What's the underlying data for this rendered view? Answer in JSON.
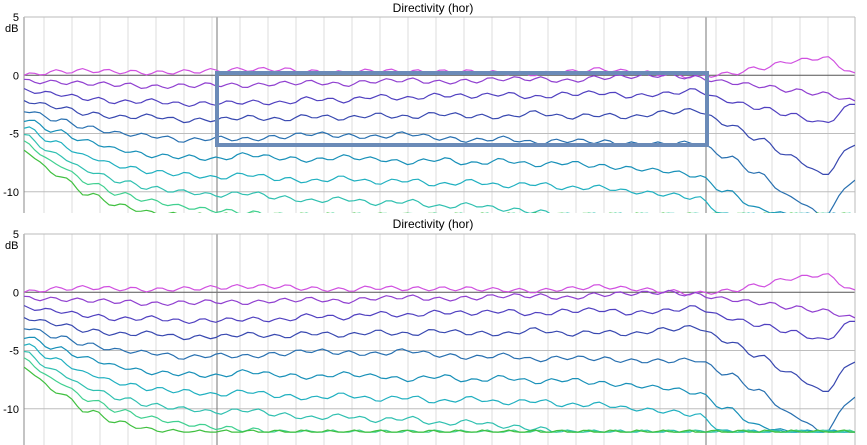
{
  "chart_data": [
    {
      "type": "line",
      "title": "Directivity (hor)",
      "ylabel": "dB",
      "ylim": [
        -12,
        5
      ],
      "yticks": [
        "5",
        "0",
        "-5",
        "-10"
      ],
      "highlight_box": true,
      "series": [
        {
          "color": "#d050e0",
          "values": [
            0.0,
            0.3,
            0.4,
            0.3,
            0.2,
            0.3,
            0.4,
            0.5,
            0.5,
            0.3,
            0.2,
            0.4,
            0.3,
            0.3,
            0.3,
            0.2,
            0.1,
            0.3,
            0.5,
            0.3,
            0.1,
            -0.1,
            0.1,
            0.6,
            1.2,
            1.5,
            0.2
          ]
        },
        {
          "color": "#9040d0",
          "values": [
            -0.5,
            -0.6,
            -0.7,
            -0.8,
            -1.0,
            -0.9,
            -0.8,
            -0.9,
            -0.7,
            -0.6,
            -0.8,
            -0.5,
            -0.4,
            -0.6,
            -0.5,
            -0.3,
            -0.3,
            -0.5,
            -0.2,
            -0.1,
            0.0,
            -0.2,
            -0.6,
            -0.9,
            -1.3,
            -1.6,
            -2.2
          ]
        },
        {
          "color": "#5040c0",
          "values": [
            -1.3,
            -1.6,
            -2.0,
            -2.3,
            -2.2,
            -2.5,
            -2.4,
            -2.3,
            -2.4,
            -2.0,
            -2.2,
            -1.8,
            -2.0,
            -1.7,
            -1.8,
            -1.6,
            -1.9,
            -1.6,
            -1.5,
            -1.8,
            -1.6,
            -1.3,
            -2.2,
            -2.8,
            -3.4,
            -4.1,
            -2.5
          ]
        },
        {
          "color": "#3848b0",
          "values": [
            -2.2,
            -2.7,
            -3.3,
            -3.6,
            -3.5,
            -3.9,
            -3.8,
            -3.6,
            -3.8,
            -3.5,
            -3.7,
            -3.4,
            -3.6,
            -3.3,
            -3.5,
            -3.6,
            -3.2,
            -3.6,
            -3.4,
            -3.6,
            -3.2,
            -3.0,
            -4.2,
            -5.5,
            -7.0,
            -8.5,
            -6.0
          ]
        },
        {
          "color": "#2870b0",
          "values": [
            -3.0,
            -3.8,
            -4.5,
            -5.0,
            -5.2,
            -5.6,
            -5.4,
            -5.5,
            -5.3,
            -5.0,
            -5.2,
            -5.3,
            -5.0,
            -5.4,
            -5.6,
            -5.4,
            -5.8,
            -5.6,
            -5.7,
            -5.9,
            -5.9,
            -5.8,
            -7.0,
            -8.5,
            -10.5,
            -12.0,
            -9.0
          ]
        },
        {
          "color": "#1890b8",
          "values": [
            -3.8,
            -4.8,
            -5.7,
            -6.4,
            -6.9,
            -7.0,
            -7.2,
            -6.8,
            -7.1,
            -7.3,
            -7.0,
            -7.2,
            -7.5,
            -7.2,
            -7.6,
            -7.3,
            -7.7,
            -7.5,
            -7.8,
            -8.0,
            -8.2,
            -8.6,
            -10.0,
            -11.5,
            -12.0,
            -12.0,
            -12.0
          ]
        },
        {
          "color": "#20b0c0",
          "values": [
            -4.5,
            -5.8,
            -7.0,
            -7.8,
            -8.3,
            -8.5,
            -8.8,
            -8.5,
            -8.9,
            -9.1,
            -8.8,
            -9.2,
            -9.0,
            -9.4,
            -9.1,
            -9.5,
            -9.3,
            -9.7,
            -9.6,
            -10.0,
            -10.2,
            -10.5,
            -12.0,
            -12.0,
            -12.0,
            -12.0,
            -12.0
          ]
        },
        {
          "color": "#30c0b0",
          "values": [
            -5.2,
            -6.8,
            -8.2,
            -9.1,
            -9.7,
            -10.0,
            -10.3,
            -10.1,
            -10.5,
            -10.8,
            -10.6,
            -11.0,
            -10.8,
            -11.3,
            -11.1,
            -11.5,
            -11.7,
            -12.0,
            -12.0,
            -12.0,
            -12.0,
            -12.0,
            -12.0,
            -12.0,
            -12.0,
            -12.0,
            -12.0
          ]
        },
        {
          "color": "#40d090",
          "values": [
            -5.8,
            -7.6,
            -9.2,
            -10.2,
            -10.8,
            -11.3,
            -11.6,
            -11.8,
            -12.0,
            -12.0,
            -12.0,
            -12.0,
            -12.0,
            -12.0,
            -12.0,
            -12.0,
            -12.0,
            -12.0,
            -12.0,
            -12.0,
            -12.0,
            -12.0,
            -12.0,
            -12.0,
            -12.0,
            -12.0,
            -12.0
          ]
        },
        {
          "color": "#40c040",
          "values": [
            -6.5,
            -8.5,
            -10.2,
            -11.2,
            -11.8,
            -12.0,
            -12.0,
            -12.0,
            -12.0,
            -12.0,
            -12.0,
            -12.0,
            -12.0,
            -12.0,
            -12.0,
            -12.0,
            -12.0,
            -12.0,
            -12.0,
            -12.0,
            -12.0,
            -12.0,
            -12.0,
            -12.0,
            -12.0,
            -12.0,
            -12.0
          ]
        }
      ]
    },
    {
      "type": "line",
      "title": "Directivity (hor)",
      "ylabel": "dB",
      "ylim": [
        -12,
        5
      ],
      "yticks": [
        "5",
        "0",
        "-5",
        "-10"
      ],
      "highlight_box": false,
      "series": [
        {
          "color": "#d050e0",
          "values": [
            0.0,
            0.3,
            0.4,
            0.3,
            0.2,
            0.3,
            0.4,
            0.5,
            0.5,
            0.3,
            0.2,
            0.4,
            0.3,
            0.3,
            0.3,
            0.2,
            0.1,
            0.3,
            0.5,
            0.3,
            0.1,
            -0.1,
            0.1,
            0.6,
            1.2,
            1.5,
            0.2
          ]
        },
        {
          "color": "#9040d0",
          "values": [
            -0.5,
            -0.6,
            -0.7,
            -0.8,
            -1.0,
            -0.9,
            -0.8,
            -0.9,
            -0.7,
            -0.6,
            -0.8,
            -0.5,
            -0.4,
            -0.6,
            -0.5,
            -0.3,
            -0.3,
            -0.5,
            -0.2,
            -0.1,
            0.0,
            -0.2,
            -0.6,
            -0.9,
            -1.3,
            -1.6,
            -2.2
          ]
        },
        {
          "color": "#5040c0",
          "values": [
            -1.3,
            -1.6,
            -2.0,
            -2.3,
            -2.2,
            -2.5,
            -2.4,
            -2.3,
            -2.4,
            -2.0,
            -2.2,
            -1.8,
            -2.0,
            -1.7,
            -1.8,
            -1.6,
            -1.9,
            -1.6,
            -1.5,
            -1.8,
            -1.6,
            -1.3,
            -2.2,
            -2.8,
            -3.4,
            -4.1,
            -2.5
          ]
        },
        {
          "color": "#3848b0",
          "values": [
            -2.2,
            -2.7,
            -3.3,
            -3.6,
            -3.5,
            -3.9,
            -3.8,
            -3.6,
            -3.8,
            -3.5,
            -3.7,
            -3.4,
            -3.6,
            -3.3,
            -3.5,
            -3.6,
            -3.2,
            -3.6,
            -3.4,
            -3.6,
            -3.2,
            -3.0,
            -4.2,
            -5.5,
            -7.0,
            -8.5,
            -6.0
          ]
        },
        {
          "color": "#2870b0",
          "values": [
            -3.0,
            -3.8,
            -4.5,
            -5.0,
            -5.2,
            -5.6,
            -5.4,
            -5.5,
            -5.3,
            -5.0,
            -5.2,
            -5.3,
            -5.0,
            -5.4,
            -5.6,
            -5.4,
            -5.8,
            -5.6,
            -5.7,
            -5.9,
            -5.9,
            -5.8,
            -7.0,
            -8.5,
            -10.5,
            -12.0,
            -9.0
          ]
        },
        {
          "color": "#1890b8",
          "values": [
            -3.8,
            -4.8,
            -5.7,
            -6.4,
            -6.9,
            -7.0,
            -7.2,
            -6.8,
            -7.1,
            -7.3,
            -7.0,
            -7.2,
            -7.5,
            -7.2,
            -7.6,
            -7.3,
            -7.7,
            -7.5,
            -7.8,
            -8.0,
            -8.2,
            -8.6,
            -10.0,
            -11.5,
            -12.0,
            -12.0,
            -12.0
          ]
        },
        {
          "color": "#20b0c0",
          "values": [
            -4.5,
            -5.8,
            -7.0,
            -7.8,
            -8.3,
            -8.5,
            -8.8,
            -8.5,
            -8.9,
            -9.1,
            -8.8,
            -9.2,
            -9.0,
            -9.4,
            -9.1,
            -9.5,
            -9.3,
            -9.7,
            -9.6,
            -10.0,
            -10.2,
            -10.5,
            -12.0,
            -12.0,
            -12.0,
            -12.0,
            -12.0
          ]
        },
        {
          "color": "#30c0b0",
          "values": [
            -5.2,
            -6.8,
            -8.2,
            -9.1,
            -9.7,
            -10.0,
            -10.3,
            -10.1,
            -10.5,
            -10.8,
            -10.6,
            -11.0,
            -10.8,
            -11.3,
            -11.1,
            -11.5,
            -11.7,
            -12.0,
            -12.0,
            -12.0,
            -12.0,
            -12.0,
            -12.0,
            -12.0,
            -12.0,
            -12.0,
            -12.0
          ]
        },
        {
          "color": "#40d090",
          "values": [
            -5.8,
            -7.6,
            -9.2,
            -10.2,
            -10.8,
            -11.3,
            -11.6,
            -11.8,
            -12.0,
            -12.0,
            -12.0,
            -12.0,
            -12.0,
            -12.0,
            -12.0,
            -12.0,
            -12.0,
            -12.0,
            -12.0,
            -12.0,
            -12.0,
            -12.0,
            -12.0,
            -12.0,
            -12.0,
            -12.0,
            -12.0
          ]
        },
        {
          "color": "#40c040",
          "values": [
            -6.5,
            -8.5,
            -10.2,
            -11.2,
            -11.8,
            -12.0,
            -12.0,
            -12.0,
            -12.0,
            -12.0,
            -12.0,
            -12.0,
            -12.0,
            -12.0,
            -12.0,
            -12.0,
            -12.0,
            -12.0,
            -12.0,
            -12.0,
            -12.0,
            -12.0,
            -12.0,
            -12.0,
            -12.0,
            -12.0,
            -12.0
          ]
        }
      ]
    }
  ],
  "highlight_color": "#6b8bb8"
}
